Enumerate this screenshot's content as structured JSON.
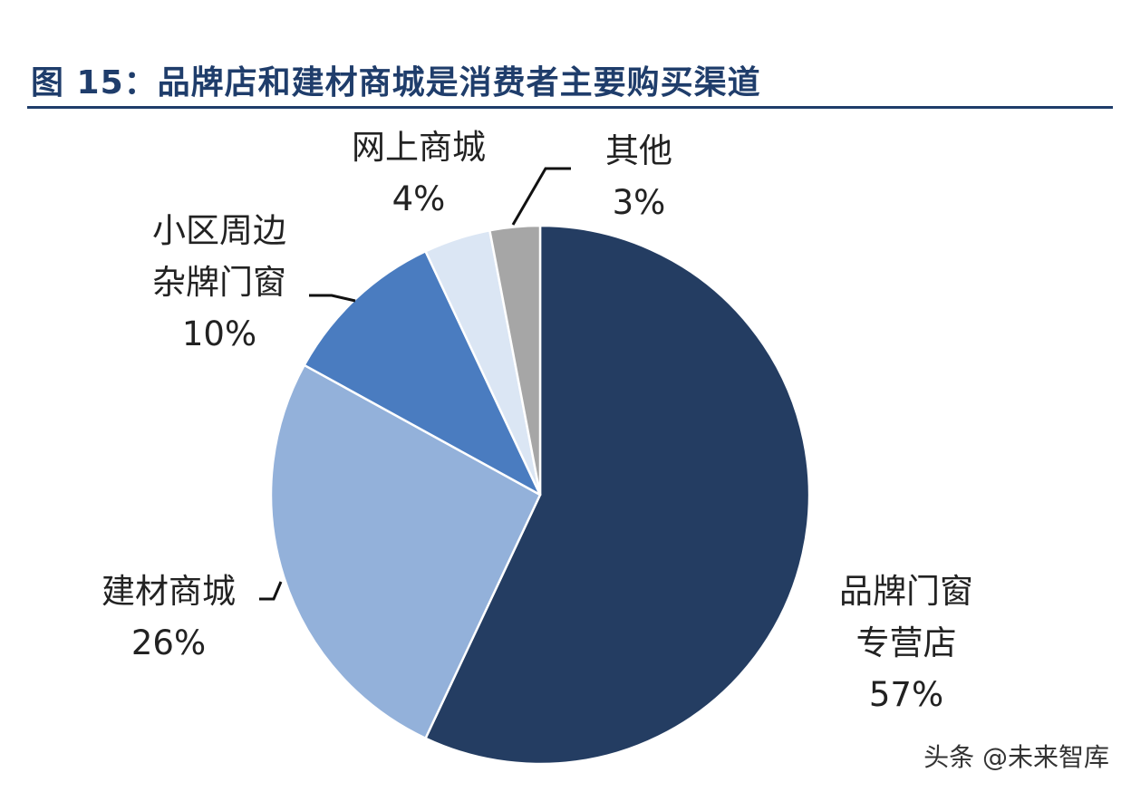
{
  "figure": {
    "title": "图 15：品牌店和建材商城是消费者主要购买渠道",
    "watermark": "头条 @未来智库"
  },
  "chart_data": {
    "type": "pie",
    "title": "图 15：品牌店和建材商城是消费者主要购买渠道",
    "start": "12 o'clock",
    "direction": "clockwise",
    "slices": [
      {
        "lines": [
          "品牌门窗",
          "专营店"
        ],
        "label": "品牌门窗专营店",
        "value": 57,
        "value_label": "57%",
        "color": "#243d62"
      },
      {
        "lines": [
          "建材商城"
        ],
        "label": "建材商城",
        "value": 26,
        "value_label": "26%",
        "color": "#93b1da"
      },
      {
        "lines": [
          "小区周边",
          "杂牌门窗"
        ],
        "label": "小区周边杂牌门窗",
        "value": 10,
        "value_label": "10%",
        "color": "#4a7cc0"
      },
      {
        "lines": [
          "网上商城"
        ],
        "label": "网上商城",
        "value": 4,
        "value_label": "4%",
        "color": "#dbe6f4"
      },
      {
        "lines": [
          "其他"
        ],
        "label": "其他",
        "value": 3,
        "value_label": "3%",
        "color": "#a6a6a6"
      }
    ]
  }
}
